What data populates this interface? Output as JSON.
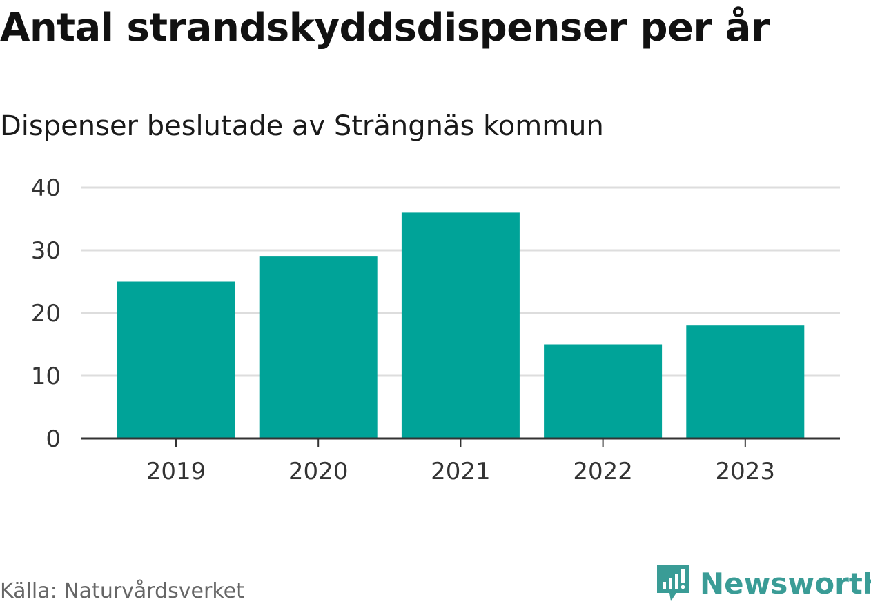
{
  "title": "Antal strandskyddsdispenser per år",
  "subtitle": "Dispenser beslutade av Strängnäs kommun",
  "source": "Källa: Naturvårdsverket",
  "brand": {
    "name": "Newsworthy",
    "icon": "newsworthy-logo-icon",
    "color": "#3a9c96"
  },
  "chart_data": {
    "type": "bar",
    "title": "Antal strandskyddsdispenser per år",
    "subtitle": "Dispenser beslutade av Strängnäs kommun",
    "xlabel": "",
    "ylabel": "",
    "categories": [
      "2019",
      "2020",
      "2021",
      "2022",
      "2023"
    ],
    "values": [
      25,
      29,
      36,
      15,
      18
    ],
    "ylim": [
      0,
      40
    ],
    "yticks": [
      0,
      10,
      20,
      30,
      40
    ],
    "grid": true,
    "bar_color": "#00a398"
  }
}
